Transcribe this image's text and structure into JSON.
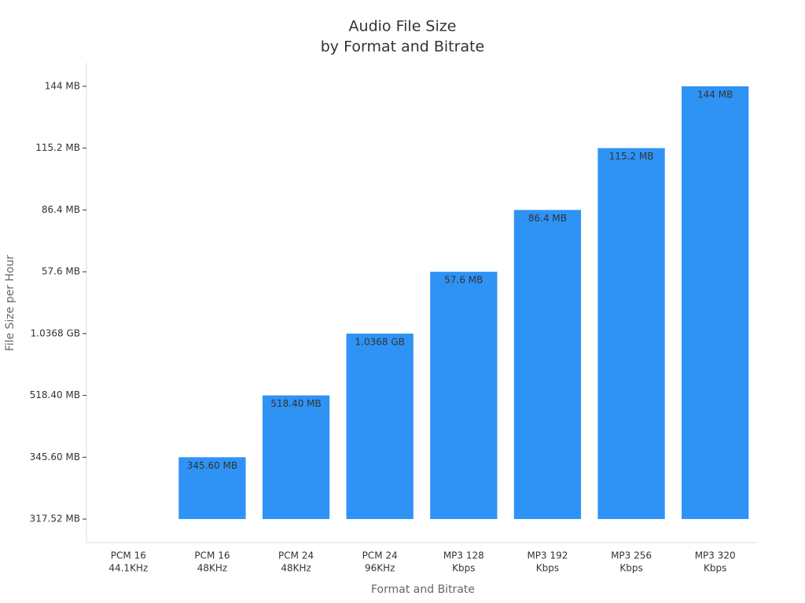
{
  "chart_data": {
    "type": "bar",
    "title": "Audio File Size",
    "subtitle": "by Format and Bitrate",
    "x_label": "Format and Bitrate",
    "y_label": "File Size per Hour",
    "categories": [
      [
        "PCM 16",
        "44.1KHz"
      ],
      [
        "PCM 16",
        "48KHz"
      ],
      [
        "PCM 24",
        "48KHz"
      ],
      [
        "PCM 24",
        "96KHz"
      ],
      [
        "MP3 128",
        "Kbps"
      ],
      [
        "MP3 192",
        "Kbps"
      ],
      [
        "MP3 256",
        "Kbps"
      ],
      [
        "MP3 320",
        "Kbps"
      ]
    ],
    "values": [
      0,
      1,
      2,
      3,
      4,
      5,
      6,
      7
    ],
    "value_labels": [
      null,
      "345.60 MB",
      "518.40 MB",
      "1.0368 GB",
      "57.6 MB",
      "86.4 MB",
      "115.2 MB",
      "144 MB"
    ],
    "color": "#2e93f5",
    "ylim": [
      -0.38,
      7.38
    ],
    "yticks": [
      {
        "value": 0,
        "label": "317.52 MB"
      },
      {
        "value": 1,
        "label": "345.60 MB"
      },
      {
        "value": 2,
        "label": "518.40 MB"
      },
      {
        "value": 3,
        "label": "1.0368 GB"
      },
      {
        "value": 4,
        "label": "57.6 MB"
      },
      {
        "value": 5,
        "label": "86.4 MB"
      },
      {
        "value": 6,
        "label": "115.2 MB"
      },
      {
        "value": 7,
        "label": "144 MB"
      }
    ],
    "grid": false
  }
}
